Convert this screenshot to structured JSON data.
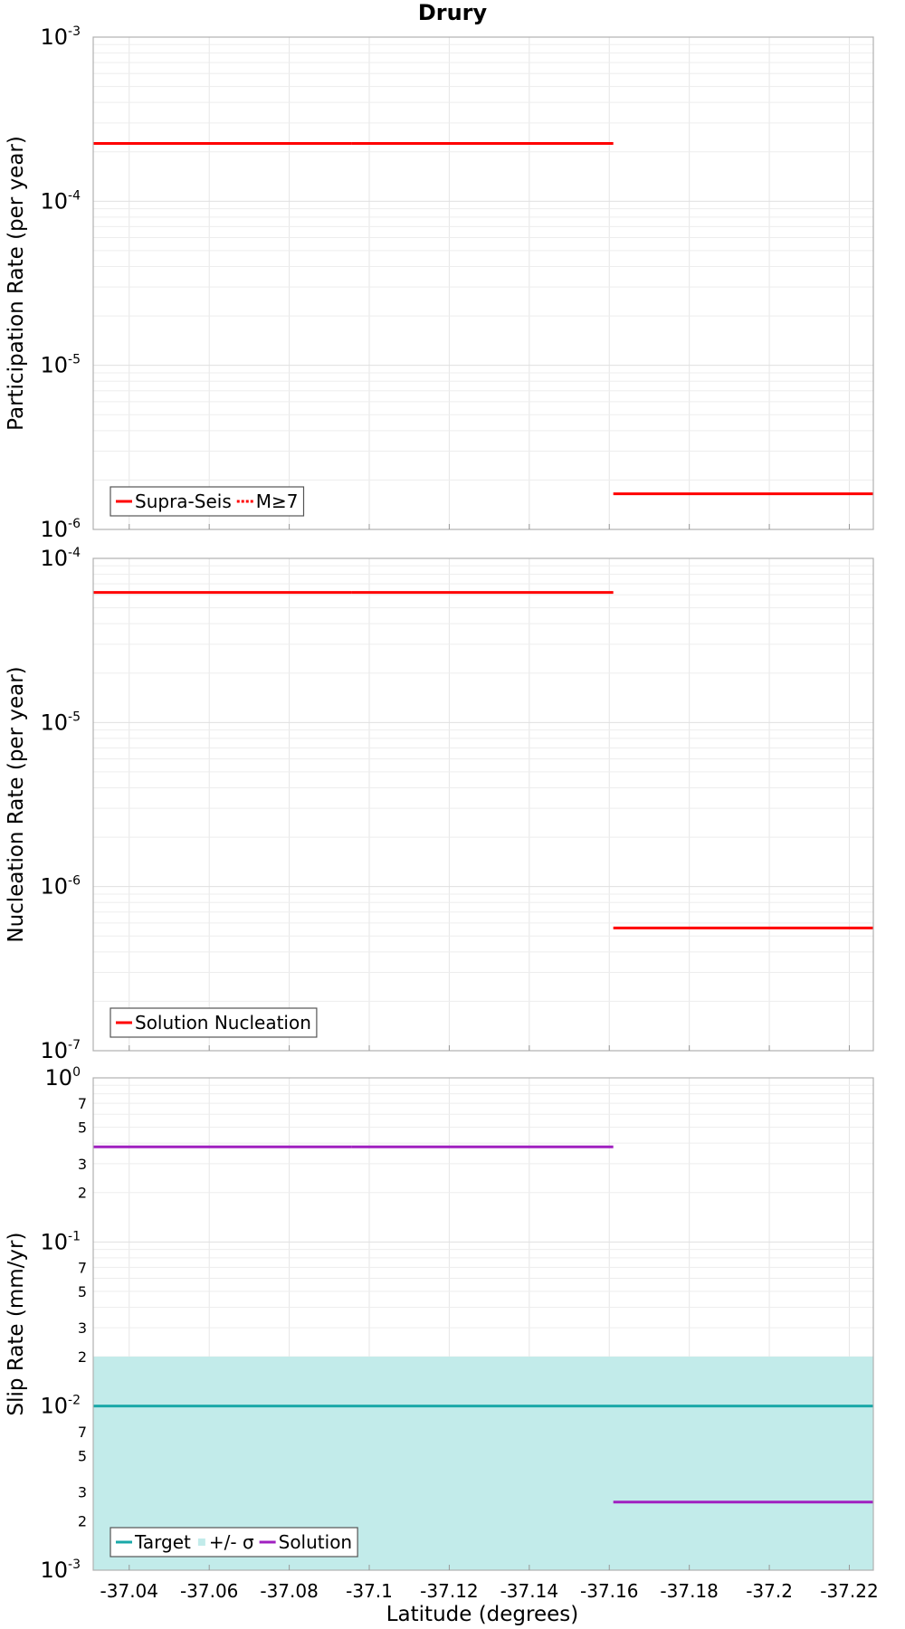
{
  "chart_data": {
    "type": "line",
    "title": "Drury",
    "xlabel": "Latitude (degrees)",
    "xlim": [
      -37.031,
      -37.226
    ],
    "x_ticks": [
      -37.04,
      -37.06,
      -37.08,
      -37.1,
      -37.12,
      -37.14,
      -37.16,
      -37.18,
      -37.2,
      -37.22
    ],
    "x_tick_labels": [
      "-37.04",
      "-37.06",
      "-37.08",
      "-37.1",
      "-37.12",
      "-37.14",
      "-37.16",
      "-37.18",
      "-37.2",
      "-37.22"
    ],
    "grid": true,
    "panels": [
      {
        "ylabel": "Participation Rate (per year)",
        "yscale": "log",
        "ylim": [
          1e-06,
          0.001
        ],
        "y_major_exponents": [
          -6,
          -5,
          -4,
          -3
        ],
        "legend": {
          "position": "bottom-left",
          "entries": [
            {
              "label": "Supra-Seis",
              "style": "solid",
              "color": "#ff0000"
            },
            {
              "label": "M≥7",
              "style": "dotted",
              "color": "#ff0000"
            }
          ]
        },
        "series": [
          {
            "name": "Supra-Seis",
            "color": "#ff0000",
            "segments": [
              {
                "x": [
                  -37.031,
                  -37.0955
                ],
                "y": [
                  0.000225,
                  0.000225
                ]
              },
              {
                "x": [
                  -37.0955,
                  -37.161
                ],
                "y": [
                  0.000225,
                  0.000225
                ]
              },
              {
                "x": [
                  -37.161,
                  -37.226
                ],
                "y": [
                  1.65e-06,
                  1.65e-06
                ]
              }
            ]
          }
        ]
      },
      {
        "ylabel": "Nucleation Rate (per year)",
        "yscale": "log",
        "ylim": [
          1e-07,
          0.0001
        ],
        "y_major_exponents": [
          -7,
          -6,
          -5,
          -4
        ],
        "legend": {
          "position": "bottom-left",
          "entries": [
            {
              "label": "Solution Nucleation",
              "style": "solid",
              "color": "#ff0000"
            }
          ]
        },
        "series": [
          {
            "name": "Solution Nucleation",
            "color": "#ff0000",
            "segments": [
              {
                "x": [
                  -37.031,
                  -37.0955
                ],
                "y": [
                  6.2e-05,
                  6.2e-05
                ]
              },
              {
                "x": [
                  -37.0955,
                  -37.161
                ],
                "y": [
                  6.2e-05,
                  6.2e-05
                ]
              },
              {
                "x": [
                  -37.161,
                  -37.226
                ],
                "y": [
                  5.6e-07,
                  5.6e-07
                ]
              }
            ]
          }
        ]
      },
      {
        "ylabel": "Slip Rate (mm/yr)",
        "yscale": "log",
        "ylim": [
          0.001,
          1
        ],
        "y_major_exponents": [
          -3,
          -2,
          -1,
          0
        ],
        "y_minor_labels": [
          "2",
          "3",
          "5",
          "7"
        ],
        "legend": {
          "position": "bottom-left",
          "entries": [
            {
              "label": "Target",
              "style": "solid",
              "color": "#1aa8a8"
            },
            {
              "label": "+/- σ",
              "style": "fill",
              "color": "#c2ebea"
            },
            {
              "label": "Solution",
              "style": "solid",
              "color": "#a020c0"
            }
          ]
        },
        "band": {
          "name": "+/- σ",
          "color": "#c2ebea",
          "x": [
            -37.031,
            -37.226
          ],
          "y_low": 0.001,
          "y_high": 0.02
        },
        "series": [
          {
            "name": "Target",
            "color": "#1aa8a8",
            "segments": [
              {
                "x": [
                  -37.031,
                  -37.226
                ],
                "y": [
                  0.01,
                  0.01
                ]
              }
            ]
          },
          {
            "name": "Solution",
            "color": "#a020c0",
            "segments": [
              {
                "x": [
                  -37.031,
                  -37.0955
                ],
                "y": [
                  0.38,
                  0.38
                ]
              },
              {
                "x": [
                  -37.0955,
                  -37.161
                ],
                "y": [
                  0.38,
                  0.38
                ]
              },
              {
                "x": [
                  -37.161,
                  -37.226
                ],
                "y": [
                  0.0026,
                  0.0026
                ]
              }
            ]
          }
        ]
      }
    ]
  }
}
